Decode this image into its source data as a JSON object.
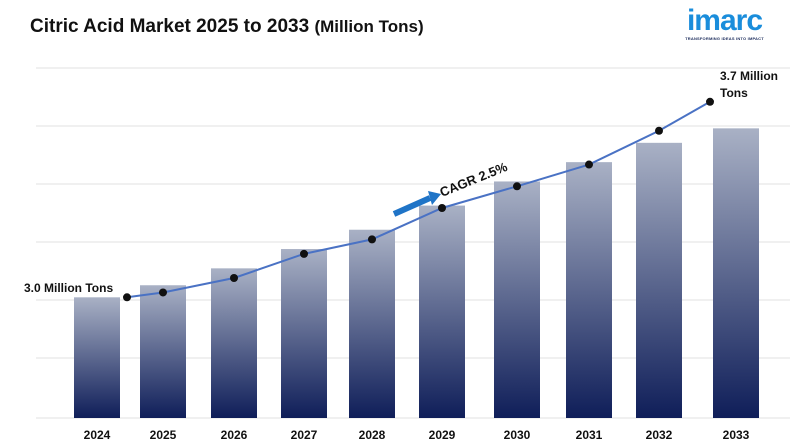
{
  "header": {
    "title": "Citric Acid Market 2025 to 2033",
    "unit": "(Million Tons)"
  },
  "logo": {
    "word": "imarc",
    "tagline": "TRANSFORMING IDEAS INTO IMPACT"
  },
  "chart_data": {
    "type": "bar",
    "categories": [
      "2024",
      "2025",
      "2026",
      "2027",
      "2028",
      "2029",
      "2030",
      "2031",
      "2032",
      "2033"
    ],
    "values": [
      3.0,
      3.05,
      3.12,
      3.2,
      3.28,
      3.38,
      3.48,
      3.56,
      3.64,
      3.7
    ],
    "line_values": [
      3.0,
      3.02,
      3.08,
      3.18,
      3.24,
      3.37,
      3.46,
      3.55,
      3.69,
      3.81
    ],
    "ylim": [
      2.5,
      3.95
    ],
    "grid": true,
    "colors": {
      "bar_top": "#a9b1c5",
      "bar_bottom": "#0f1e59",
      "line": "#4a72c4",
      "marker": "#111111",
      "arrow": "#1f74c7",
      "grid": "#e0e0e0"
    },
    "annotations": {
      "start_label": "3.0 Million Tons",
      "end_label_line1": "3.7 Million",
      "end_label_line2": "Tons",
      "cagr": "CAGR 2.5%"
    }
  }
}
